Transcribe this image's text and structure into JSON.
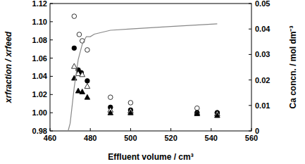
{
  "chart_data": {
    "type": "scatter",
    "x_label": "Effluent volume / cm³",
    "y_label": "xrfraction / xrfeed",
    "y2_label": "Ca concn. / mol dm⁻³",
    "xlim": [
      460,
      560
    ],
    "xticks": [
      460,
      480,
      500,
      520,
      540,
      560
    ],
    "ylim": [
      0.98,
      1.12
    ],
    "yticks": [
      0.98,
      {
        "value": 1,
        "label": "1.00"
      },
      1.02,
      1.04,
      1.06,
      1.08,
      {
        "value": 1.1,
        "label": "1.10"
      },
      1.12
    ],
    "y2lim": [
      0,
      0.05
    ],
    "y2ticks": [
      0,
      0.01,
      0.02,
      0.03,
      0.04,
      0.05
    ],
    "series": [
      {
        "marker": "circle-open",
        "color": "#000000",
        "x": [
          472,
          474.5,
          476,
          478.5,
          490,
          500,
          533,
          543
        ],
        "values": [
          1.106,
          1.086,
          1.079,
          1.069,
          1.017,
          1.011,
          1.005,
          1.0
        ]
      },
      {
        "marker": "circle",
        "color": "#000000",
        "x": [
          472,
          474,
          475.5,
          478.5,
          490,
          500,
          533,
          543
        ],
        "values": [
          1.071,
          1.047,
          1.044,
          1.035,
          1.006,
          1.003,
          1.0,
          1.0
        ]
      },
      {
        "marker": "triangle-open",
        "color": "#000000",
        "x": [
          472,
          474,
          476,
          478.5,
          490,
          500,
          533,
          543
        ],
        "values": [
          1.051,
          1.043,
          1.042,
          1.029,
          1.003,
          1.002,
          1.0,
          0.999
        ]
      },
      {
        "marker": "triangle",
        "color": "#000000",
        "x": [
          472,
          474,
          476,
          478.5,
          490,
          500,
          533,
          543
        ],
        "values": [
          1.038,
          1.024,
          1.023,
          1.017,
          1.0,
          1.0,
          0.999,
          0.997
        ]
      },
      {
        "type": "line",
        "axis": "y2",
        "color": "#888888",
        "x": [
          469,
          470,
          472,
          474,
          476,
          478,
          480,
          482,
          490,
          500,
          520,
          543
        ],
        "values": [
          0,
          0.003,
          0.017,
          0.028,
          0.034,
          0.037,
          0.037,
          0.038,
          0.0395,
          0.04,
          0.041,
          0.042
        ]
      }
    ]
  }
}
